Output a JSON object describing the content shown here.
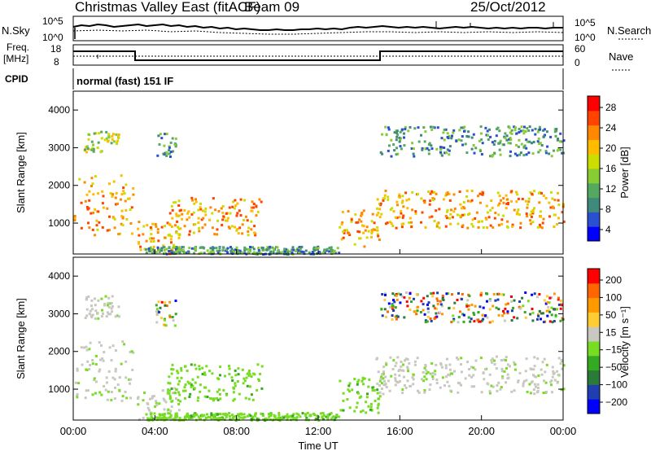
{
  "header": {
    "title": "Christmas Valley East (fitACF)",
    "beam": "Beam 09",
    "date": "25/Oct/2012"
  },
  "top_panels": {
    "nsky_label": "N.Sky",
    "nsearch_label": "N.Search",
    "nsky_ticks": [
      "10^5",
      "10^0"
    ],
    "nsearch_ticks": [
      "10^5",
      "10^0"
    ],
    "freq_label_line1": "Freq.",
    "freq_label_line2": "[MHz]",
    "freq_ticks": [
      "18",
      "8"
    ],
    "nave_label": "Nave",
    "nave_ticks": [
      "60",
      "0"
    ],
    "cpid_label": "CPID",
    "cpid_value": "normal (fast) 151 IF"
  },
  "colors": {
    "power_scale": [
      "#0000ff",
      "#2a4fd0",
      "#3f8a7a",
      "#55a860",
      "#88cc33",
      "#ccdd00",
      "#ffbb00",
      "#ff8800",
      "#ff4400",
      "#ff0000"
    ],
    "velocity_scale": [
      "#0000ff",
      "#1f3fb0",
      "#2a7a3a",
      "#33aa22",
      "#77dd22",
      "#c8c8c0",
      "#ffcc33",
      "#ff9900",
      "#ff6600",
      "#ff0000"
    ]
  },
  "chart_data": [
    {
      "type": "heatmap",
      "name": "power",
      "ylabel": "Slant Range [km]",
      "ylim": [
        180,
        4500
      ],
      "xlim": [
        0,
        24
      ],
      "yticks": [
        "1000",
        "2000",
        "3000",
        "4000"
      ],
      "colorbar_label": "Power [dB]",
      "colorbar_ticks": [
        "28",
        "24",
        "20",
        "16",
        "12",
        "8",
        "4"
      ],
      "colorbar_range": [
        0,
        30
      ]
    },
    {
      "type": "heatmap",
      "name": "velocity",
      "ylabel": "Slant Range [km]",
      "ylim": [
        180,
        4500
      ],
      "xlim": [
        0,
        24
      ],
      "yticks": [
        "1000",
        "2000",
        "3000",
        "4000"
      ],
      "colorbar_label": "Velocity [m s⁻¹]",
      "colorbar_ticks": [
        "200",
        "100",
        "50",
        "15",
        "−15",
        "−50",
        "−100",
        "−200"
      ],
      "colorbar_range": [
        -250,
        250
      ],
      "xlabel": "Time UT",
      "xticks": [
        "00:00",
        "04:00",
        "08:00",
        "12:00",
        "16:00",
        "20:00",
        "00:00"
      ]
    }
  ]
}
